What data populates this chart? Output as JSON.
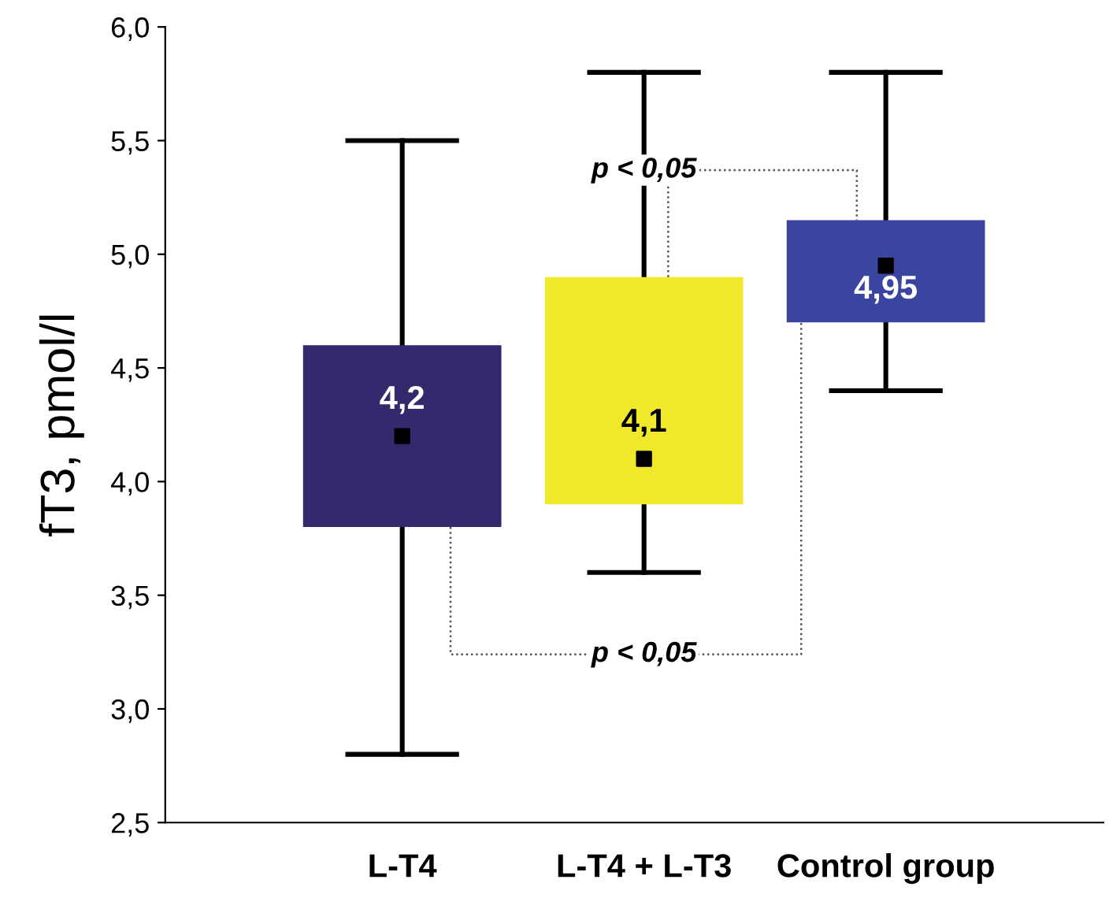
{
  "chart_data": {
    "type": "box",
    "ylabel": "fT3, pmol/l",
    "categories": [
      "L-T4",
      "L-T4 + L-T3",
      "Control group"
    ],
    "boxes": [
      {
        "low": 2.8,
        "q1": 3.8,
        "median": 4.2,
        "q3": 4.6,
        "high": 5.5
      },
      {
        "low": 3.6,
        "q1": 3.9,
        "median": 4.1,
        "q3": 4.9,
        "high": 5.8
      },
      {
        "low": 4.4,
        "q1": 4.7,
        "median": 4.95,
        "q3": 5.15,
        "high": 5.8
      }
    ],
    "colors": [
      "#332a6e",
      "#f0e82a",
      "#3a45a0"
    ],
    "value_labels": [
      "4,2",
      "4,1",
      "4,95"
    ],
    "marker": "square",
    "ylim": [
      2.5,
      6.0
    ],
    "yticks": [
      {
        "value": 2.5,
        "label": "2,5"
      },
      {
        "value": 3.0,
        "label": "3,0"
      },
      {
        "value": 3.5,
        "label": "3,5"
      },
      {
        "value": 4.0,
        "label": "4,0"
      },
      {
        "value": 4.5,
        "label": "4,5"
      },
      {
        "value": 5.0,
        "label": "5,0"
      },
      {
        "value": 5.5,
        "label": "5,5"
      },
      {
        "value": 6.0,
        "label": "6,0"
      }
    ],
    "annotations": [
      "p < 0,05",
      "p < 0,05"
    ],
    "grid": false
  }
}
